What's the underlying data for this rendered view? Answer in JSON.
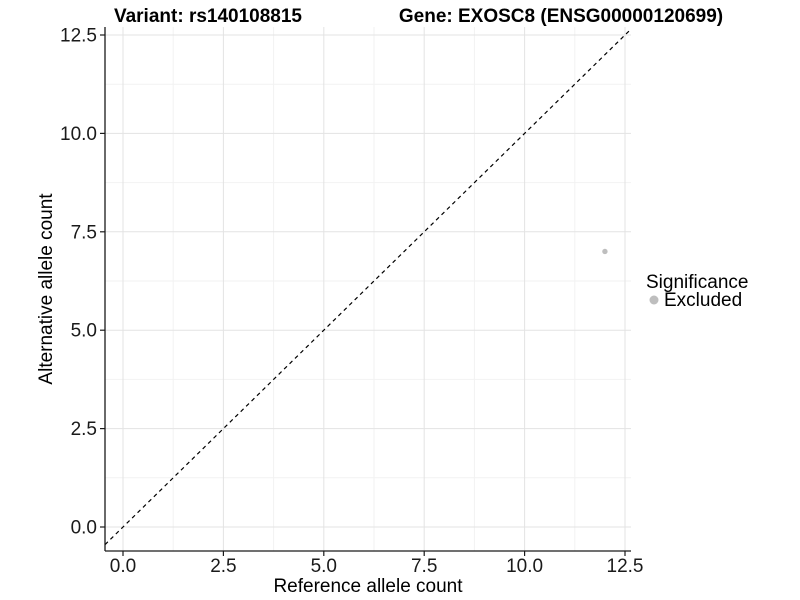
{
  "chart_data": {
    "type": "scatter",
    "title_left": "Variant: rs140108815",
    "title_right": "Gene: EXOSC8 (ENSG00000120699)",
    "xlabel": "Reference allele count",
    "ylabel": "Alternative allele count",
    "x_ticks": [
      0,
      2.5,
      5,
      7.5,
      10,
      12.5
    ],
    "y_ticks": [
      0,
      2.5,
      5,
      7.5,
      10,
      12.5
    ],
    "x_tick_labels": [
      "0.0",
      "2.5",
      "5.0",
      "7.5",
      "10.0",
      "12.5"
    ],
    "y_tick_labels": [
      "0.0",
      "2.5",
      "5.0",
      "7.5",
      "10.0",
      "12.5"
    ],
    "xlim": [
      -0.45,
      12.65
    ],
    "ylim": [
      -0.61,
      12.7
    ],
    "grid": {
      "major_color": "#e3e3e3",
      "minor_color": "#f2f2f2",
      "minor": true
    },
    "reference_line": {
      "slope": 1,
      "intercept": 0,
      "style": "dashed",
      "color": "#000000"
    },
    "series": [
      {
        "name": "Excluded",
        "color": "#bebebe",
        "points": [
          {
            "x": 12,
            "y": 7
          }
        ]
      }
    ],
    "legend": {
      "title": "Significance",
      "position": "right"
    },
    "axis_color": "#1a1a1a",
    "background": "#ffffff"
  }
}
